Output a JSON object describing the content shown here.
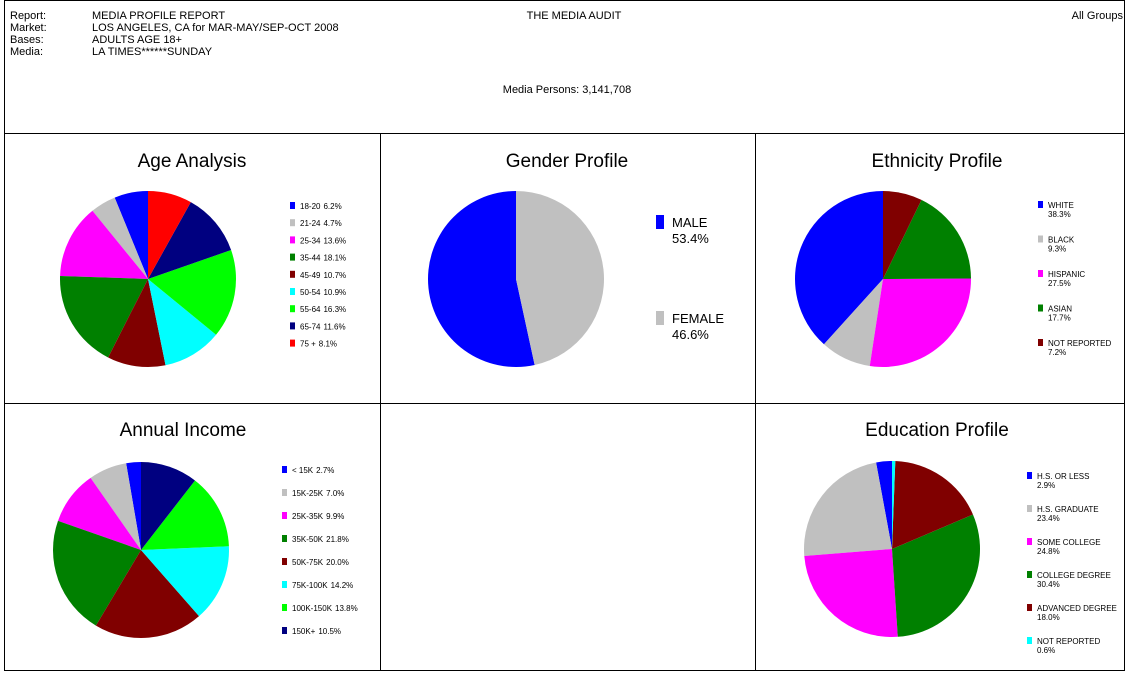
{
  "header": {
    "fields": [
      {
        "label": "Report:",
        "value": "MEDIA PROFILE REPORT"
      },
      {
        "label": "Market:",
        "value": "LOS ANGELES, CA for MAR-MAY/SEP-OCT 2008"
      },
      {
        "label": "Bases:",
        "value": "ADULTS AGE 18+"
      },
      {
        "label": "Media:",
        "value": "LA TIMES******SUNDAY"
      }
    ],
    "center": "THE MEDIA AUDIT",
    "right": "All Groups",
    "persons": "Media Persons: 3,141,708"
  },
  "chart_data": [
    {
      "type": "pie",
      "title": "Age Analysis",
      "categories": [
        "18-20",
        "21-24",
        "25-34",
        "35-44",
        "45-49",
        "50-54",
        "55-64",
        "65-74",
        "75 +"
      ],
      "values": [
        6.2,
        4.7,
        13.6,
        18.1,
        10.7,
        10.9,
        16.3,
        11.6,
        8.1
      ],
      "value_labels": [
        "6.2%",
        "4.7%",
        "13.6%",
        "18.1%",
        "10.7%",
        "10.9%",
        "16.3%",
        "11.6%",
        "8.1%"
      ],
      "colors": [
        "#0000ff",
        "#c0c0c0",
        "#ff00ff",
        "#008000",
        "#800000",
        "#00ffff",
        "#00ff00",
        "#000080",
        "#ff0000"
      ]
    },
    {
      "type": "pie",
      "title": "Gender Profile",
      "categories": [
        "MALE",
        "FEMALE"
      ],
      "values": [
        53.4,
        46.6
      ],
      "value_labels": [
        "53.4%",
        "46.6%"
      ],
      "colors": [
        "#0000ff",
        "#c0c0c0"
      ]
    },
    {
      "type": "pie",
      "title": "Ethnicity Profile",
      "categories": [
        "WHITE",
        "BLACK",
        "HISPANIC",
        "ASIAN",
        "NOT REPORTED"
      ],
      "values": [
        38.3,
        9.3,
        27.5,
        17.7,
        7.2
      ],
      "value_labels": [
        "38.3%",
        "9.3%",
        "27.5%",
        "17.7%",
        "7.2%"
      ],
      "colors": [
        "#0000ff",
        "#c0c0c0",
        "#ff00ff",
        "#008000",
        "#800000"
      ]
    },
    {
      "type": "pie",
      "title": "Annual Income",
      "categories": [
        "< 15K",
        "15K-25K",
        "25K-35K",
        "35K-50K",
        "50K-75K",
        "75K-100K",
        "100K-150K",
        "150K+"
      ],
      "values": [
        2.7,
        7.0,
        9.9,
        21.8,
        20.0,
        14.2,
        13.8,
        10.5
      ],
      "value_labels": [
        "2.7%",
        "7.0%",
        "9.9%",
        "21.8%",
        "20.0%",
        "14.2%",
        "13.8%",
        "10.5%"
      ],
      "colors": [
        "#0000ff",
        "#c0c0c0",
        "#ff00ff",
        "#008000",
        "#800000",
        "#00ffff",
        "#00ff00",
        "#000080"
      ]
    },
    {
      "type": "pie",
      "title": "Education Profile",
      "categories": [
        "H.S. OR LESS",
        "H.S. GRADUATE",
        "SOME COLLEGE",
        "COLLEGE DEGREE",
        "ADVANCED DEGREE",
        "NOT REPORTED"
      ],
      "values": [
        2.9,
        23.4,
        24.8,
        30.4,
        18.0,
        0.6
      ],
      "value_labels": [
        "2.9%",
        "23.4%",
        "24.8%",
        "30.4%",
        "18.0%",
        "0.6%"
      ],
      "colors": [
        "#0000ff",
        "#c0c0c0",
        "#ff00ff",
        "#008000",
        "#800000",
        "#00ffff"
      ]
    }
  ]
}
